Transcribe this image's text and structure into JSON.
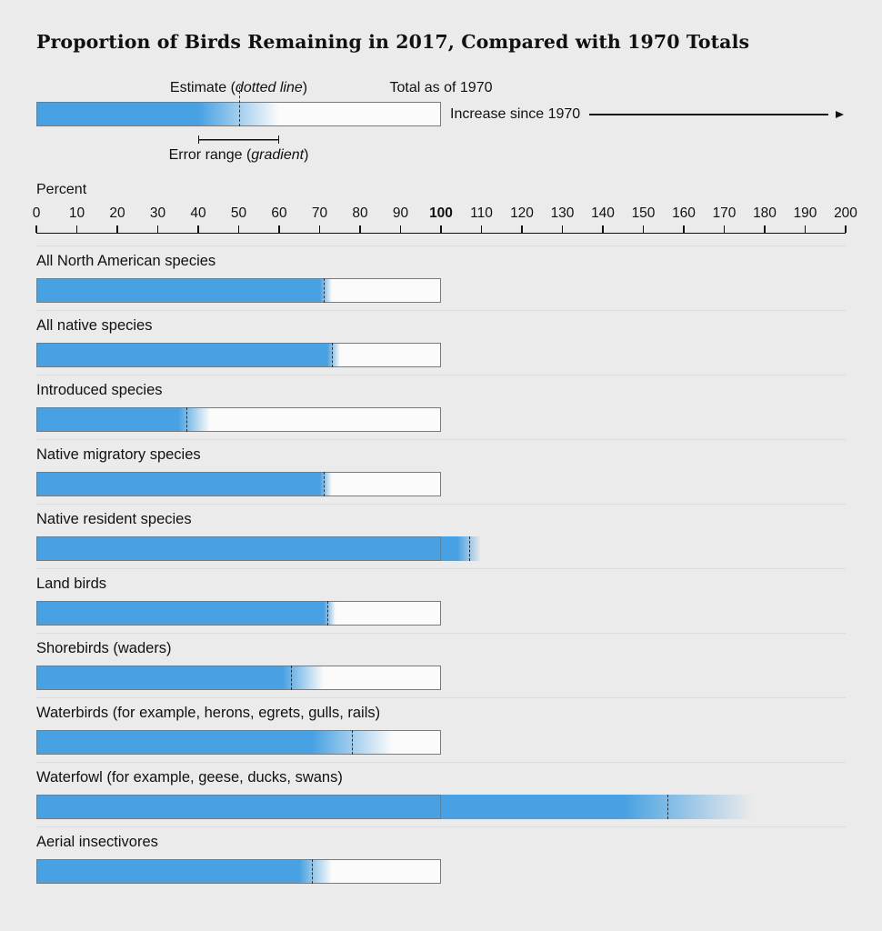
{
  "title": "Proportion of Birds Remaining in 2017, Compared with 1970 Totals",
  "legend": {
    "estimate": {
      "pre": "Estimate (",
      "italic": "dotted line",
      "post": ")"
    },
    "total_label": "Total as of 1970",
    "increase_label": "Increase since 1970",
    "error": {
      "pre": "Error range (",
      "italic": "gradient",
      "post": ")"
    },
    "sample": {
      "error_low": 40,
      "error_high": 60,
      "estimate": 50
    }
  },
  "axis": {
    "label": "Percent",
    "min": 0,
    "max": 200,
    "bold_tick": "100",
    "tick_labels": [
      "0",
      "10",
      "20",
      "30",
      "40",
      "50",
      "60",
      "70",
      "80",
      "90",
      "100",
      "110",
      "120",
      "130",
      "140",
      "150",
      "160",
      "170",
      "180",
      "190",
      "200"
    ]
  },
  "colors": {
    "bar_blue": "#47a1e3",
    "background": "#ebebeb",
    "box_border": "#7a7a7a",
    "box_fill": "#fbfbfb",
    "separator": "#dcdcdc",
    "estimate_line": "#2e2e2e"
  },
  "chart_data": {
    "type": "bar",
    "orientation": "horizontal",
    "title": "Proportion of Birds Remaining in 2017, Compared with 1970 Totals",
    "xlabel": "Percent",
    "xlim": [
      0,
      200
    ],
    "x_tick_step": 10,
    "baseline_1970_total": 100,
    "legend_notes": [
      "Estimate (dotted line)",
      "Error range (gradient)",
      "Total as of 1970",
      "Increase since 1970"
    ],
    "categories": [
      "All North American species",
      "All native species",
      "Introduced species",
      "Native migratory species",
      "Native resident species",
      "Land birds",
      "Shorebirds (waders)",
      "Waterbirds (for example, herons, egrets, gulls, rails)",
      "Waterfowl (for example, geese, ducks, swans)",
      "Aerial insectivores"
    ],
    "series": [
      {
        "name": "estimate",
        "values": [
          71,
          73,
          37,
          71,
          107,
          72,
          63,
          78,
          156,
          68
        ]
      },
      {
        "name": "error_low",
        "values": [
          70,
          72,
          35,
          70,
          104,
          71,
          61,
          68,
          145,
          65
        ]
      },
      {
        "name": "error_high",
        "values": [
          73,
          75,
          43,
          73,
          110,
          74,
          71,
          88,
          177,
          73
        ]
      }
    ]
  }
}
